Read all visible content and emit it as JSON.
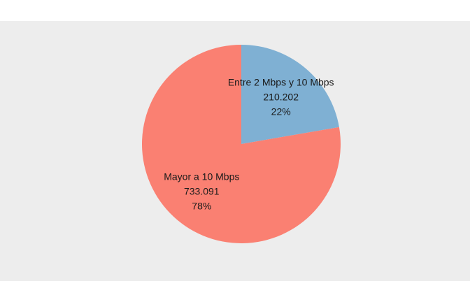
{
  "chart_data": {
    "type": "pie",
    "title": "",
    "background_color": "#ededed",
    "start": "12 o'clock",
    "direction": "clockwise",
    "slices": [
      {
        "label": "Entre 2 Mbps y 10 Mbps",
        "value_label": "210.202",
        "percent_label": "22%",
        "value": 210202,
        "color": "#7fb0d3"
      },
      {
        "label": "Mayor a 10 Mbps",
        "value_label": "733.091",
        "percent_label": "78%",
        "value": 733091,
        "color": "#fa8072"
      }
    ]
  }
}
